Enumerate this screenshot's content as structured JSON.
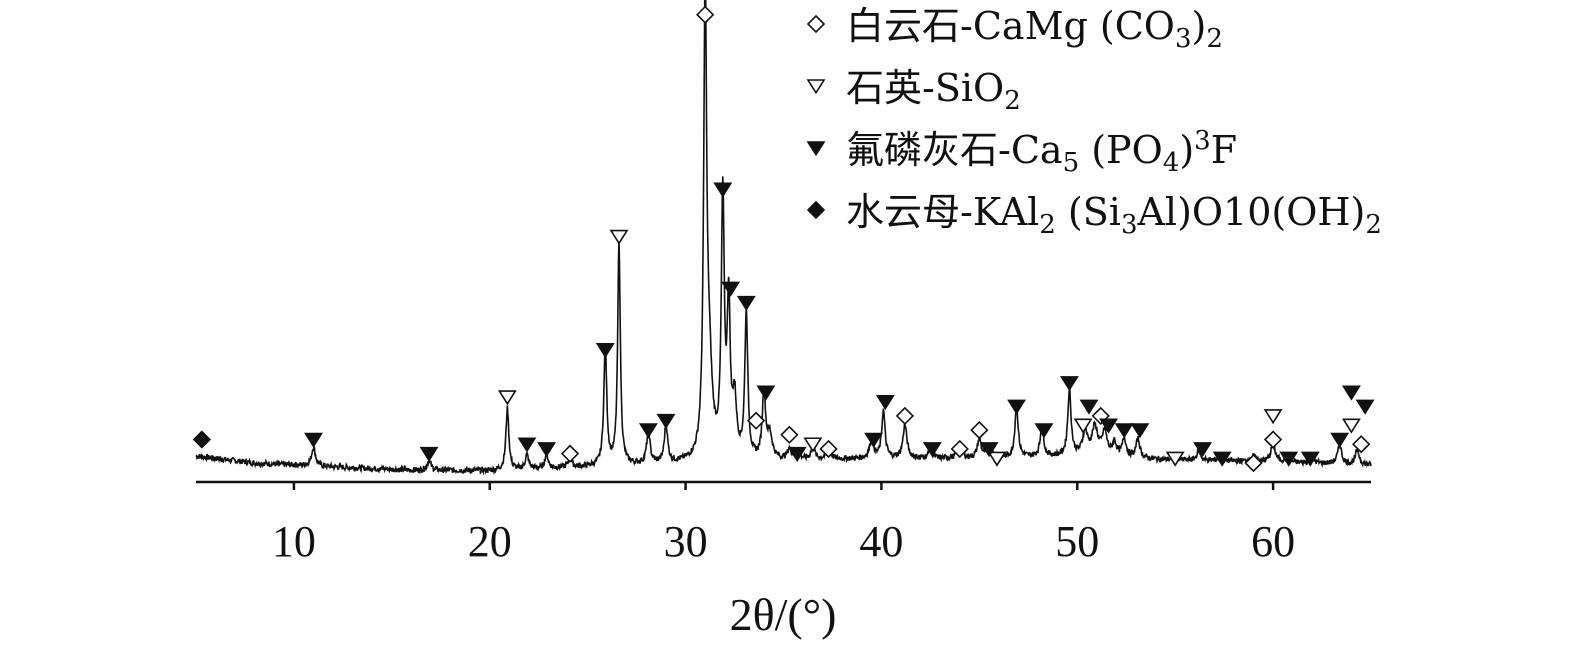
{
  "chart_data": {
    "type": "line",
    "title": "",
    "xlabel": "2θ/(°)",
    "ylabel": "",
    "xlim": [
      5,
      65
    ],
    "x_ticks": [
      10,
      20,
      30,
      40,
      50,
      60
    ],
    "x_tick_labels": [
      "10",
      "20",
      "30",
      "40",
      "50",
      "60"
    ],
    "ylim": [
      0,
      100
    ],
    "grid": false,
    "legend_position": "top-right",
    "baseline": [
      [
        5,
        5.5
      ],
      [
        8,
        4.0
      ],
      [
        12,
        3.2
      ],
      [
        16,
        2.5
      ],
      [
        20,
        2.4
      ],
      [
        25,
        3.2
      ],
      [
        30,
        4.0
      ],
      [
        35,
        4.6
      ],
      [
        40,
        5.0
      ],
      [
        45,
        5.0
      ],
      [
        50,
        5.5
      ],
      [
        55,
        4.6
      ],
      [
        60,
        4.3
      ],
      [
        65,
        3.6
      ]
    ],
    "peaks": [
      {
        "x": 11.0,
        "h": 4,
        "w": 0.12
      },
      {
        "x": 16.9,
        "h": 2,
        "w": 0.12
      },
      {
        "x": 20.9,
        "h": 13,
        "w": 0.09
      },
      {
        "x": 21.9,
        "h": 3,
        "w": 0.1
      },
      {
        "x": 22.9,
        "h": 3,
        "w": 0.1
      },
      {
        "x": 24.1,
        "h": 2,
        "w": 0.1
      },
      {
        "x": 25.9,
        "h": 25,
        "w": 0.09
      },
      {
        "x": 26.6,
        "h": 47,
        "w": 0.08
      },
      {
        "x": 28.1,
        "h": 7,
        "w": 0.1
      },
      {
        "x": 29.0,
        "h": 8,
        "w": 0.1
      },
      {
        "x": 31.0,
        "h": 96,
        "w": 0.09
      },
      {
        "x": 31.2,
        "h": 18,
        "w": 0.18
      },
      {
        "x": 31.9,
        "h": 55,
        "w": 0.09
      },
      {
        "x": 32.2,
        "h": 32,
        "w": 0.09
      },
      {
        "x": 32.5,
        "h": 12,
        "w": 0.12
      },
      {
        "x": 33.1,
        "h": 31,
        "w": 0.09
      },
      {
        "x": 34.0,
        "h": 14,
        "w": 0.1
      },
      {
        "x": 34.3,
        "h": 5,
        "w": 0.15
      },
      {
        "x": 35.3,
        "h": 2,
        "w": 0.12
      },
      {
        "x": 35.7,
        "h": 2,
        "w": 0.12
      },
      {
        "x": 36.5,
        "h": 3,
        "w": 0.1
      },
      {
        "x": 37.3,
        "h": 3,
        "w": 0.1
      },
      {
        "x": 39.5,
        "h": 4,
        "w": 0.12
      },
      {
        "x": 40.1,
        "h": 10,
        "w": 0.1
      },
      {
        "x": 41.2,
        "h": 7,
        "w": 0.12
      },
      {
        "x": 42.5,
        "h": 2,
        "w": 0.1
      },
      {
        "x": 44.0,
        "h": 3,
        "w": 0.12
      },
      {
        "x": 45.0,
        "h": 4,
        "w": 0.12
      },
      {
        "x": 45.5,
        "h": 3,
        "w": 0.12
      },
      {
        "x": 46.9,
        "h": 11,
        "w": 0.1
      },
      {
        "x": 48.2,
        "h": 7,
        "w": 0.1
      },
      {
        "x": 49.6,
        "h": 14,
        "w": 0.1
      },
      {
        "x": 50.4,
        "h": 5,
        "w": 0.15
      },
      {
        "x": 50.9,
        "h": 6,
        "w": 0.18
      },
      {
        "x": 51.4,
        "h": 5,
        "w": 0.15
      },
      {
        "x": 51.9,
        "h": 3,
        "w": 0.12
      },
      {
        "x": 52.4,
        "h": 4,
        "w": 0.12
      },
      {
        "x": 53.1,
        "h": 4,
        "w": 0.12
      },
      {
        "x": 55.0,
        "h": 1,
        "w": 0.1
      },
      {
        "x": 56.2,
        "h": 2,
        "w": 0.12
      },
      {
        "x": 57.3,
        "h": 1,
        "w": 0.12
      },
      {
        "x": 59.0,
        "h": 1,
        "w": 0.12
      },
      {
        "x": 60.0,
        "h": 4,
        "w": 0.12
      },
      {
        "x": 60.7,
        "h": 1,
        "w": 0.12
      },
      {
        "x": 62.0,
        "h": 1,
        "w": 0.12
      },
      {
        "x": 63.4,
        "h": 4,
        "w": 0.12
      },
      {
        "x": 64.3,
        "h": 3,
        "w": 0.12
      }
    ],
    "series": [
      {
        "name": "白云石-CaMg (CO3)2",
        "marker": "open-diamond",
        "points": [
          [
            31.0,
            99
          ],
          [
            24.1,
            6
          ],
          [
            33.6,
            13
          ],
          [
            35.3,
            10
          ],
          [
            37.3,
            7
          ],
          [
            41.2,
            14
          ],
          [
            44.0,
            7
          ],
          [
            45.0,
            11
          ],
          [
            51.2,
            14
          ],
          [
            59.0,
            4
          ],
          [
            60.0,
            9
          ],
          [
            64.5,
            8
          ]
        ]
      },
      {
        "name": "石英-SiO2",
        "marker": "open-triangle-down",
        "points": [
          [
            26.6,
            52
          ],
          [
            20.9,
            18
          ],
          [
            36.5,
            8
          ],
          [
            45.9,
            5
          ],
          [
            50.3,
            12
          ],
          [
            55.0,
            5
          ],
          [
            60.0,
            14
          ],
          [
            64.0,
            12
          ]
        ]
      },
      {
        "name": "氟磷灰石-Ca5 (PO4)3F",
        "marker": "filled-triangle-down",
        "points": [
          [
            11.0,
            9
          ],
          [
            16.9,
            6
          ],
          [
            21.9,
            8
          ],
          [
            22.9,
            7
          ],
          [
            25.9,
            28
          ],
          [
            28.1,
            11
          ],
          [
            29.0,
            13
          ],
          [
            31.9,
            62
          ],
          [
            32.3,
            41
          ],
          [
            33.1,
            38
          ],
          [
            34.1,
            19
          ],
          [
            35.7,
            6
          ],
          [
            39.6,
            9
          ],
          [
            40.2,
            17
          ],
          [
            42.6,
            7
          ],
          [
            45.5,
            7
          ],
          [
            46.9,
            16
          ],
          [
            48.3,
            11
          ],
          [
            49.6,
            21
          ],
          [
            50.6,
            16
          ],
          [
            51.6,
            12
          ],
          [
            52.4,
            11
          ],
          [
            53.2,
            11
          ],
          [
            56.4,
            7
          ],
          [
            57.4,
            5
          ],
          [
            60.8,
            5
          ],
          [
            61.9,
            5
          ],
          [
            63.4,
            9
          ],
          [
            64.0,
            19
          ],
          [
            64.7,
            16
          ]
        ]
      },
      {
        "name": "水云母-KAl2 (Si3Al)O10(OH)2",
        "marker": "filled-diamond",
        "points": [
          [
            5.3,
            9
          ]
        ]
      }
    ]
  },
  "legend": [
    {
      "label": "白云石-CaMg (CO",
      "sub": "3",
      "tail": ")",
      "sub2": "2",
      "marker": "open-diamond"
    },
    {
      "label": "石英-SiO",
      "sub": "2",
      "tail": "",
      "sub2": "",
      "marker": "open-triangle-down"
    },
    {
      "label": "氟磷灰石-Ca",
      "sub": "5",
      "tail": " (PO",
      "sub2": "4",
      "tail2": ")",
      "sup": "3",
      "tail3": "F",
      "marker": "filled-triangle-down"
    },
    {
      "label": "水云母-KAl",
      "sub": "2",
      "tail": " (Si",
      "sub2": "3",
      "tail2": "Al)O10(OH)",
      "sub3": "2",
      "marker": "filled-diamond"
    }
  ]
}
